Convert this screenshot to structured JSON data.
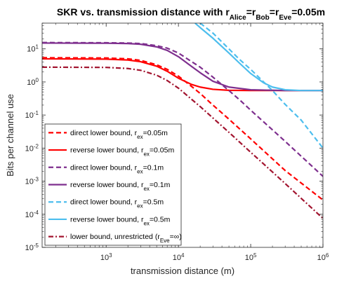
{
  "chart_data": {
    "type": "line",
    "title": {
      "parts": [
        {
          "t": "SKR vs. transmission distance with r"
        },
        {
          "t": "Alice",
          "sub": true
        },
        {
          "t": "=r"
        },
        {
          "t": "Bob",
          "sub": true
        },
        {
          "t": "=r"
        },
        {
          "t": "Eve",
          "sub": true
        },
        {
          "t": "=0.05m"
        }
      ]
    },
    "xlabel": "transmission distance (m)",
    "ylabel": "Bits per channel use",
    "x_scale": "log",
    "y_scale": "log",
    "xlim": [
      130,
      1000000
    ],
    "ylim": [
      1e-05,
      60
    ],
    "x_ticks": [
      {
        "value": 1000,
        "base": "10",
        "exp": "3"
      },
      {
        "value": 10000,
        "base": "10",
        "exp": "4"
      },
      {
        "value": 100000,
        "base": "10",
        "exp": "5"
      },
      {
        "value": 1000000,
        "base": "10",
        "exp": "6"
      }
    ],
    "y_ticks": [
      {
        "value": 1e-05,
        "base": "10",
        "exp": "-5"
      },
      {
        "value": 0.0001,
        "base": "10",
        "exp": "-4"
      },
      {
        "value": 0.001,
        "base": "10",
        "exp": "-3"
      },
      {
        "value": 0.01,
        "base": "10",
        "exp": "-2"
      },
      {
        "value": 0.1,
        "base": "10",
        "exp": "-1"
      },
      {
        "value": 1,
        "base": "10",
        "exp": "0"
      },
      {
        "value": 10,
        "base": "10",
        "exp": "1"
      }
    ],
    "grid": false,
    "legend_position": "bottom-left",
    "series": [
      {
        "name": "direct lower bound, r_ex=0.05m",
        "legend": [
          {
            "t": "direct lower bound, r"
          },
          {
            "t": "ex",
            "sub": true
          },
          {
            "t": "=0.05m"
          }
        ],
        "color": "#ff0000",
        "style": "dashed",
        "x": [
          130,
          1000,
          2000,
          3000,
          5000,
          7000,
          10000,
          15000,
          20000,
          30000,
          50000,
          100000,
          300000,
          1000000
        ],
        "y": [
          5.4,
          5.3,
          5.0,
          4.5,
          3.3,
          2.4,
          1.5,
          0.75,
          0.45,
          0.2,
          0.075,
          0.019,
          0.0021,
          0.00027
        ]
      },
      {
        "name": "reverse lower bound, r_ex=0.05m",
        "legend": [
          {
            "t": "reverse lower bound, r"
          },
          {
            "t": "ex",
            "sub": true
          },
          {
            "t": "=0.05m"
          }
        ],
        "color": "#ff0000",
        "style": "solid",
        "x": [
          130,
          1000,
          2000,
          3000,
          5000,
          7000,
          10000,
          15000,
          20000,
          30000,
          50000,
          100000,
          300000,
          1000000
        ],
        "y": [
          5.0,
          4.9,
          4.6,
          4.1,
          3.0,
          2.1,
          1.3,
          0.85,
          0.7,
          0.6,
          0.56,
          0.55,
          0.55,
          0.55
        ]
      },
      {
        "name": "direct lower bound, r_ex=0.1m",
        "legend": [
          {
            "t": "direct lower bound, r"
          },
          {
            "t": "ex",
            "sub": true
          },
          {
            "t": "=0.1m"
          }
        ],
        "color": "#7e2f8e",
        "style": "dashed",
        "x": [
          130,
          1000,
          2000,
          3000,
          5000,
          7000,
          10000,
          15000,
          20000,
          30000,
          50000,
          70000,
          100000,
          300000,
          1000000
        ],
        "y": [
          15.5,
          15.3,
          15.0,
          14.5,
          12.5,
          10.5,
          7.5,
          4.2,
          2.8,
          1.4,
          0.55,
          0.29,
          0.14,
          0.016,
          0.0014
        ]
      },
      {
        "name": "reverse lower bound, r_ex=0.1m",
        "legend": [
          {
            "t": "reverse lower bound, r"
          },
          {
            "t": "ex",
            "sub": true
          },
          {
            "t": "=0.1m"
          }
        ],
        "color": "#7e2f8e",
        "style": "solid",
        "x": [
          130,
          1000,
          2000,
          3000,
          5000,
          7000,
          10000,
          15000,
          20000,
          30000,
          50000,
          100000,
          300000,
          1000000
        ],
        "y": [
          15.0,
          14.8,
          14.5,
          13.8,
          11.5,
          9.0,
          5.8,
          3.0,
          1.9,
          1.05,
          0.7,
          0.58,
          0.55,
          0.55
        ]
      },
      {
        "name": "direct lower bound, r_ex=0.5m",
        "legend": [
          {
            "t": "direct lower bound, r"
          },
          {
            "t": "ex",
            "sub": true
          },
          {
            "t": "=0.5m"
          }
        ],
        "color": "#4dbeee",
        "style": "dashed",
        "x": [
          20000,
          30000,
          50000,
          70000,
          100000,
          200000,
          300000,
          500000,
          1000000
        ],
        "y": [
          60,
          30,
          10,
          4.8,
          2.4,
          0.55,
          0.21,
          0.07,
          0.01
        ]
      },
      {
        "name": "reverse lower bound, r_ex=0.5m",
        "legend": [
          {
            "t": "reverse lower bound, r"
          },
          {
            "t": "ex",
            "sub": true
          },
          {
            "t": "=0.5m"
          }
        ],
        "color": "#4dbeee",
        "style": "solid",
        "x": [
          17000,
          20000,
          30000,
          50000,
          70000,
          100000,
          150000,
          200000,
          300000,
          500000,
          1000000
        ],
        "y": [
          60,
          44,
          21,
          7.5,
          3.7,
          1.8,
          0.95,
          0.7,
          0.58,
          0.55,
          0.55
        ]
      },
      {
        "name": "lower bound, unrestricted (r_Eve=∞)",
        "legend": [
          {
            "t": "lower bound, unrestricted (r"
          },
          {
            "t": "Eve",
            "sub": true
          },
          {
            "t": "=∞)"
          }
        ],
        "color": "#a2142f",
        "style": "dashdot",
        "x": [
          130,
          1000,
          2000,
          3000,
          5000,
          7000,
          10000,
          20000,
          50000,
          100000,
          300000,
          1000000
        ],
        "y": [
          2.8,
          2.75,
          2.55,
          2.25,
          1.6,
          1.1,
          0.65,
          0.18,
          0.03,
          0.0075,
          0.00085,
          7.5e-05
        ]
      }
    ]
  }
}
